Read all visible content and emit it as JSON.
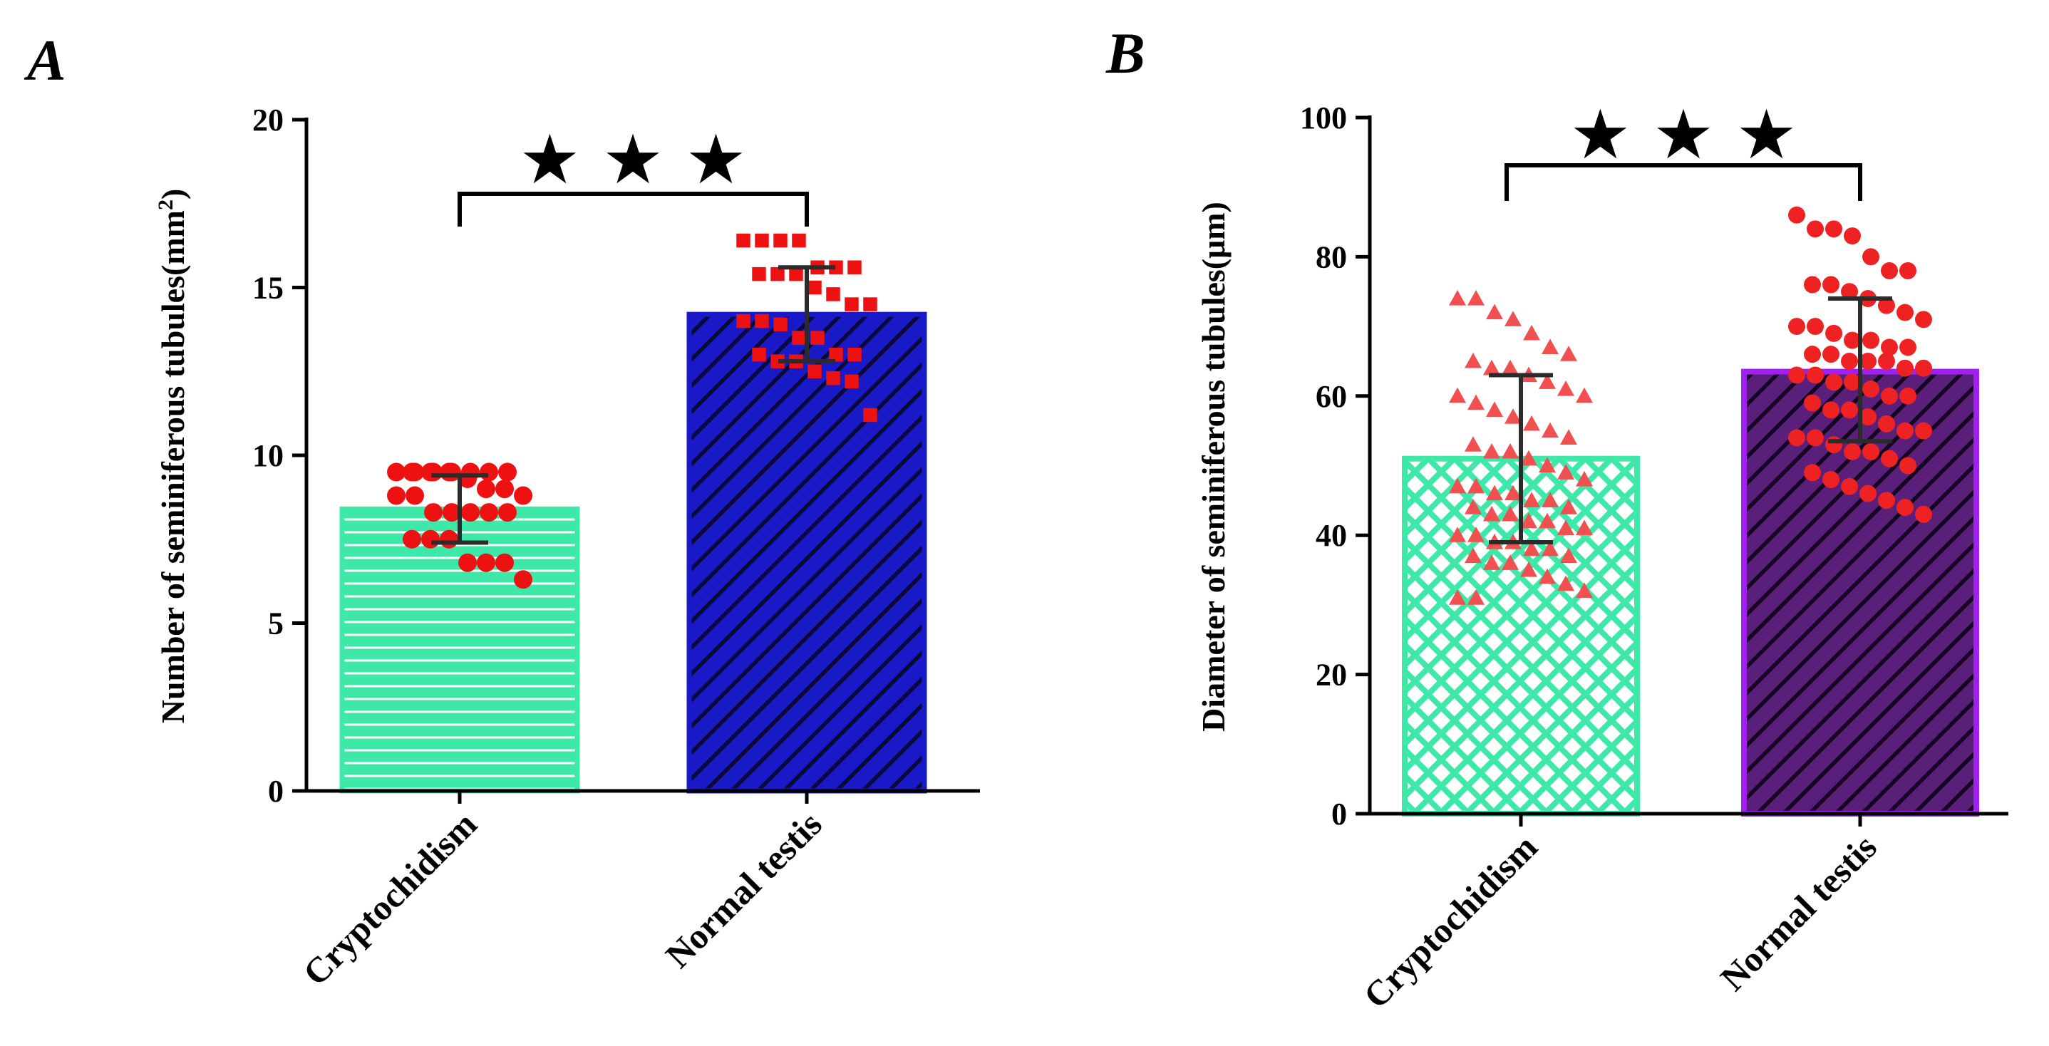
{
  "chart_data": [
    {
      "panel": "A",
      "type": "bar",
      "ylabel": "Number of seminiferous tubules(mm",
      "ylabel_superscript": "2",
      "ylabel_suffix": ")",
      "categories": [
        "Cryptochidism",
        "Normal testis"
      ],
      "values": [
        8.4,
        14.2
      ],
      "error": [
        [
          7.4,
          9.4
        ],
        [
          12.8,
          15.6
        ]
      ],
      "ylim": [
        0,
        20
      ],
      "yticks": [
        "0",
        "5",
        "10",
        "15",
        "20"
      ],
      "significance": "★ ★ ★",
      "colors": {
        "bar1": "#3ee8a9",
        "bar2": "#1919c8",
        "points": "#ee1111"
      },
      "marker": "circle-and-square",
      "points": [
        [
          9.5,
          9.5,
          9.5,
          9.5,
          9.5,
          9.5,
          9.5,
          9.5,
          9.5,
          9.5,
          9.3,
          9.0,
          9.0,
          8.8,
          8.8,
          8.8,
          8.3,
          8.3,
          8.3,
          8.3,
          8.3,
          7.5,
          7.5,
          7.5,
          6.8,
          6.8,
          6.8,
          6.3
        ],
        [
          16.4,
          16.4,
          16.4,
          16.4,
          15.6,
          15.6,
          15.6,
          15.4,
          15.4,
          15.4,
          15.0,
          14.8,
          14.5,
          14.5,
          14.0,
          14.0,
          13.9,
          13.5,
          13.5,
          13.0,
          13.0,
          13.0,
          12.8,
          12.8,
          12.5,
          12.3,
          12.2,
          11.2
        ]
      ]
    },
    {
      "panel": "B",
      "type": "bar",
      "ylabel": "Diameter of seminiferous tubules(μm)",
      "categories": [
        "Cryptochidism",
        "Normal testis"
      ],
      "values": [
        51,
        63.5
      ],
      "error": [
        [
          39,
          63
        ],
        [
          53.5,
          74
        ]
      ],
      "ylim": [
        0,
        100
      ],
      "yticks": [
        "0",
        "20",
        "40",
        "60",
        "80",
        "100"
      ],
      "significance": "★ ★ ★",
      "colors": {
        "bar1": "#3ee8a9",
        "bar2": "#5a1f7a",
        "bar2_border": "#a020f0",
        "points": "#ee2222"
      },
      "marker": "triangle-and-circle",
      "points": [
        [
          74,
          74,
          72,
          71,
          69,
          67,
          66,
          65,
          64,
          64,
          63,
          62,
          61,
          60,
          60,
          59,
          58,
          57,
          56,
          55,
          54,
          53,
          52,
          52,
          51,
          50,
          49,
          48,
          47,
          47,
          46,
          46,
          45,
          45,
          44,
          44,
          43,
          43,
          42,
          42,
          41,
          41,
          40,
          40,
          39,
          39,
          38,
          38,
          37,
          37,
          36,
          36,
          35,
          34,
          33,
          32,
          31,
          31
        ],
        [
          86,
          84,
          84,
          83,
          80,
          78,
          78,
          76,
          76,
          75,
          74,
          73,
          72,
          71,
          70,
          70,
          69,
          68,
          68,
          67,
          67,
          66,
          66,
          65,
          65,
          65,
          64,
          64,
          63,
          63,
          62,
          62,
          61,
          60,
          60,
          59,
          58,
          58,
          57,
          56,
          55,
          55,
          54,
          54,
          53,
          52,
          52,
          51,
          50,
          49,
          48,
          47,
          46,
          45,
          44,
          43
        ]
      ]
    }
  ]
}
